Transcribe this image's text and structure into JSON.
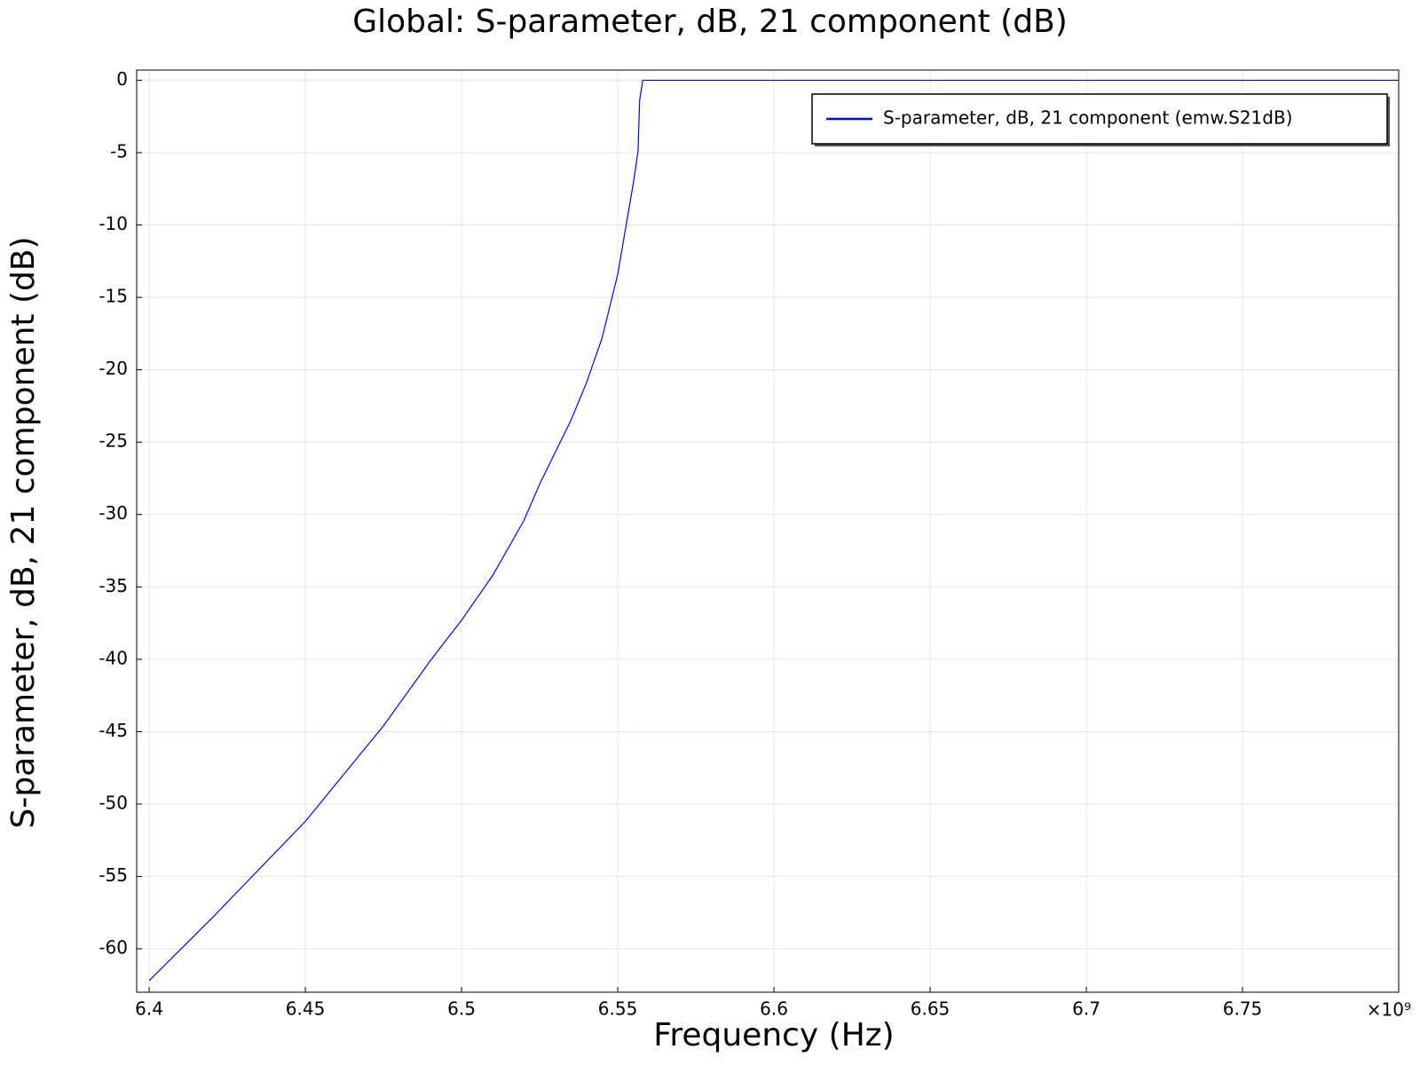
{
  "chart_data": {
    "type": "line",
    "title": "Global: S-parameter, dB, 21 component (dB)",
    "x_label": "Frequency (Hz)",
    "y_label": "S-parameter, dB, 21 component (dB)",
    "x_multiplier": "×10⁹",
    "x": [
      6.4,
      6.42,
      6.45,
      6.475,
      6.49,
      6.5,
      6.51,
      6.52,
      6.525,
      6.53,
      6.535,
      6.54,
      6.545,
      6.55,
      6.555,
      6.5565,
      6.557,
      6.558,
      6.6,
      6.7,
      6.8
    ],
    "series": [
      {
        "name": "S-parameter, dB, 21 component (emw.S21dB)",
        "color": "#0000ff",
        "values": [
          -62.2,
          -57.9,
          -51.2,
          -44.6,
          -40.1,
          -37.3,
          -34.2,
          -30.4,
          -27.9,
          -25.7,
          -23.5,
          -20.9,
          -17.8,
          -13.4,
          -7.1,
          -4.9,
          -1.4,
          0,
          0,
          0,
          0
        ]
      }
    ],
    "xlim": [
      6.396,
      6.8
    ],
    "ylim": [
      -63,
      0.7
    ],
    "xticks": [
      6.4,
      6.45,
      6.5,
      6.55,
      6.6,
      6.65,
      6.7,
      6.75
    ],
    "yticks": [
      0,
      -5,
      -10,
      -15,
      -20,
      -25,
      -30,
      -35,
      -40,
      -45,
      -50,
      -55,
      -60
    ],
    "grid": true,
    "legend": "upper right"
  }
}
